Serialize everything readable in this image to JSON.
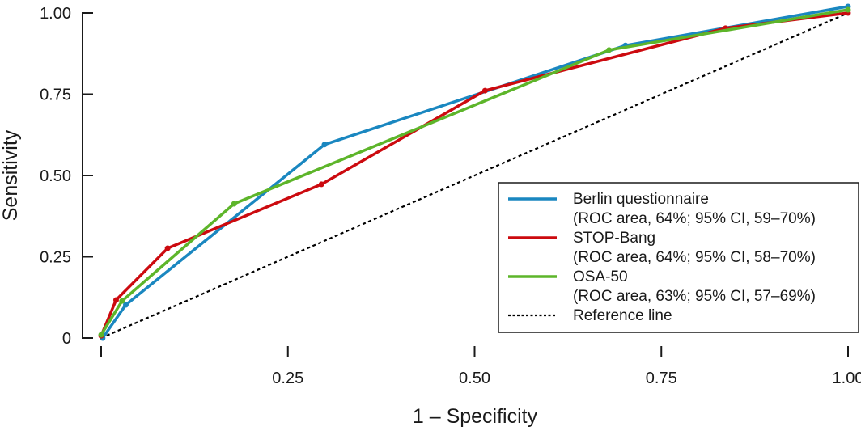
{
  "chart_data": {
    "type": "line",
    "title": "",
    "xlabel": "1 – Specificity",
    "ylabel": "Sensitivity",
    "xlim": [
      0,
      1
    ],
    "ylim": [
      0,
      1
    ],
    "grid": false,
    "legend_placement": "bottom-right",
    "x_ticks": [
      {
        "v": 0.25,
        "label": "0.25"
      },
      {
        "v": 0.5,
        "label": "0.50"
      },
      {
        "v": 0.75,
        "label": "0.75"
      },
      {
        "v": 1.0,
        "label": "1.00"
      }
    ],
    "x_tick_marks": [
      0,
      0.25,
      0.5,
      0.75,
      1.0
    ],
    "y_ticks": [
      {
        "v": 0,
        "label": "0"
      },
      {
        "v": 0.25,
        "label": "0.25"
      },
      {
        "v": 0.5,
        "label": "0.50"
      },
      {
        "v": 0.75,
        "label": "0.75"
      },
      {
        "v": 1.0,
        "label": "1.00"
      }
    ],
    "series": [
      {
        "name": "Berlin questionnaire",
        "detail": "(ROC area, 64%; 95% CI, 59–70%)",
        "color": "#1a87c0",
        "x": [
          0.002,
          0.033,
          0.299,
          0.702,
          1.0
        ],
        "y": [
          0.0,
          0.102,
          0.595,
          0.9,
          1.02
        ]
      },
      {
        "name": "STOP-Bang",
        "detail": "(ROC area, 64%; 95% CI, 58–70%)",
        "color": "#cc0a0f",
        "x": [
          0.0,
          0.02,
          0.089,
          0.295,
          0.514,
          0.836,
          1.0
        ],
        "y": [
          0.007,
          0.117,
          0.276,
          0.473,
          0.761,
          0.953,
          1.0
        ]
      },
      {
        "name": "OSA-50",
        "detail": "(ROC area, 63%; 95% CI, 57–69%)",
        "color": "#5db52a",
        "x": [
          0.0,
          0.028,
          0.178,
          0.68,
          1.0
        ],
        "y": [
          0.01,
          0.114,
          0.413,
          0.886,
          1.01
        ]
      }
    ],
    "reference": {
      "name": "Reference line",
      "color": "#000000",
      "x": [
        0,
        1
      ],
      "y": [
        0,
        1
      ]
    }
  }
}
